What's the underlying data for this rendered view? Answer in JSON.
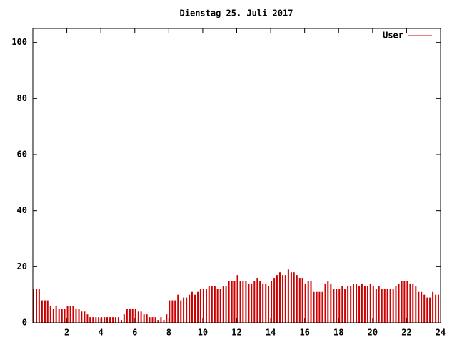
{
  "chart_data": {
    "type": "impulse",
    "title": "Dienstag 25. Juli 2017",
    "x": [
      0,
      0.17,
      0.33,
      0.5,
      0.67,
      0.83,
      1,
      1.17,
      1.33,
      1.5,
      1.67,
      1.83,
      2,
      2.17,
      2.33,
      2.5,
      2.67,
      2.83,
      3,
      3.17,
      3.33,
      3.5,
      3.67,
      3.83,
      4,
      4.17,
      4.33,
      4.5,
      4.67,
      4.83,
      5,
      5.17,
      5.33,
      5.5,
      5.67,
      5.83,
      6,
      6.17,
      6.33,
      6.5,
      6.67,
      6.83,
      7,
      7.17,
      7.33,
      7.5,
      7.67,
      7.83,
      8,
      8.17,
      8.33,
      8.5,
      8.67,
      8.83,
      9,
      9.17,
      9.33,
      9.5,
      9.67,
      9.83,
      10,
      10.17,
      10.33,
      10.5,
      10.67,
      10.83,
      11,
      11.17,
      11.33,
      11.5,
      11.67,
      11.83,
      12,
      12.17,
      12.33,
      12.5,
      12.67,
      12.83,
      13,
      13.17,
      13.33,
      13.5,
      13.67,
      13.83,
      14,
      14.17,
      14.33,
      14.5,
      14.67,
      14.83,
      15,
      15.17,
      15.33,
      15.5,
      15.67,
      15.83,
      16,
      16.17,
      16.33,
      16.5,
      16.67,
      16.83,
      17,
      17.17,
      17.33,
      17.5,
      17.67,
      17.83,
      18,
      18.17,
      18.33,
      18.5,
      18.67,
      18.83,
      19,
      19.17,
      19.33,
      19.5,
      19.67,
      19.83,
      20,
      20.17,
      20.33,
      20.5,
      20.67,
      20.83,
      21,
      21.17,
      21.33,
      21.5,
      21.67,
      21.83,
      22,
      22.17,
      22.33,
      22.5,
      22.67,
      22.83,
      23,
      23.17,
      23.33,
      23.5,
      23.67,
      23.83
    ],
    "series": [
      {
        "name": "User",
        "color": "#cc0000",
        "values": [
          12,
          12,
          12,
          8,
          8,
          8,
          6,
          5,
          6,
          5,
          5,
          5,
          6,
          6,
          6,
          5,
          5,
          4,
          4,
          3,
          2,
          2,
          2,
          2,
          2,
          2,
          2,
          2,
          2,
          2,
          2,
          1,
          3,
          5,
          5,
          5,
          5,
          4,
          4,
          3,
          3,
          2,
          2,
          2,
          1,
          2,
          1,
          3,
          8,
          8,
          8,
          10,
          8,
          9,
          9,
          10,
          11,
          10,
          11,
          12,
          12,
          12,
          13,
          13,
          13,
          12,
          12,
          13,
          13,
          15,
          15,
          15,
          17,
          15,
          15,
          15,
          14,
          14,
          15,
          16,
          15,
          14,
          14,
          13,
          15,
          16,
          17,
          18,
          17,
          17,
          19,
          18,
          18,
          17,
          16,
          16,
          14,
          15,
          15,
          11,
          11,
          11,
          11,
          14,
          15,
          14,
          12,
          12,
          12,
          13,
          12,
          13,
          13,
          14,
          14,
          13,
          14,
          13,
          13,
          14,
          13,
          12,
          13,
          12,
          12,
          12,
          12,
          12,
          13,
          14,
          15,
          15,
          15,
          14,
          14,
          13,
          11,
          11,
          10,
          9,
          9,
          11,
          10,
          10
        ]
      }
    ],
    "xlim": [
      0,
      24
    ],
    "xticks": [
      2,
      4,
      6,
      8,
      10,
      12,
      14,
      16,
      18,
      20,
      22,
      24
    ],
    "ylim": [
      0,
      105
    ],
    "yticks": [
      0,
      20,
      40,
      60,
      80,
      100
    ],
    "legend": "top-right"
  }
}
